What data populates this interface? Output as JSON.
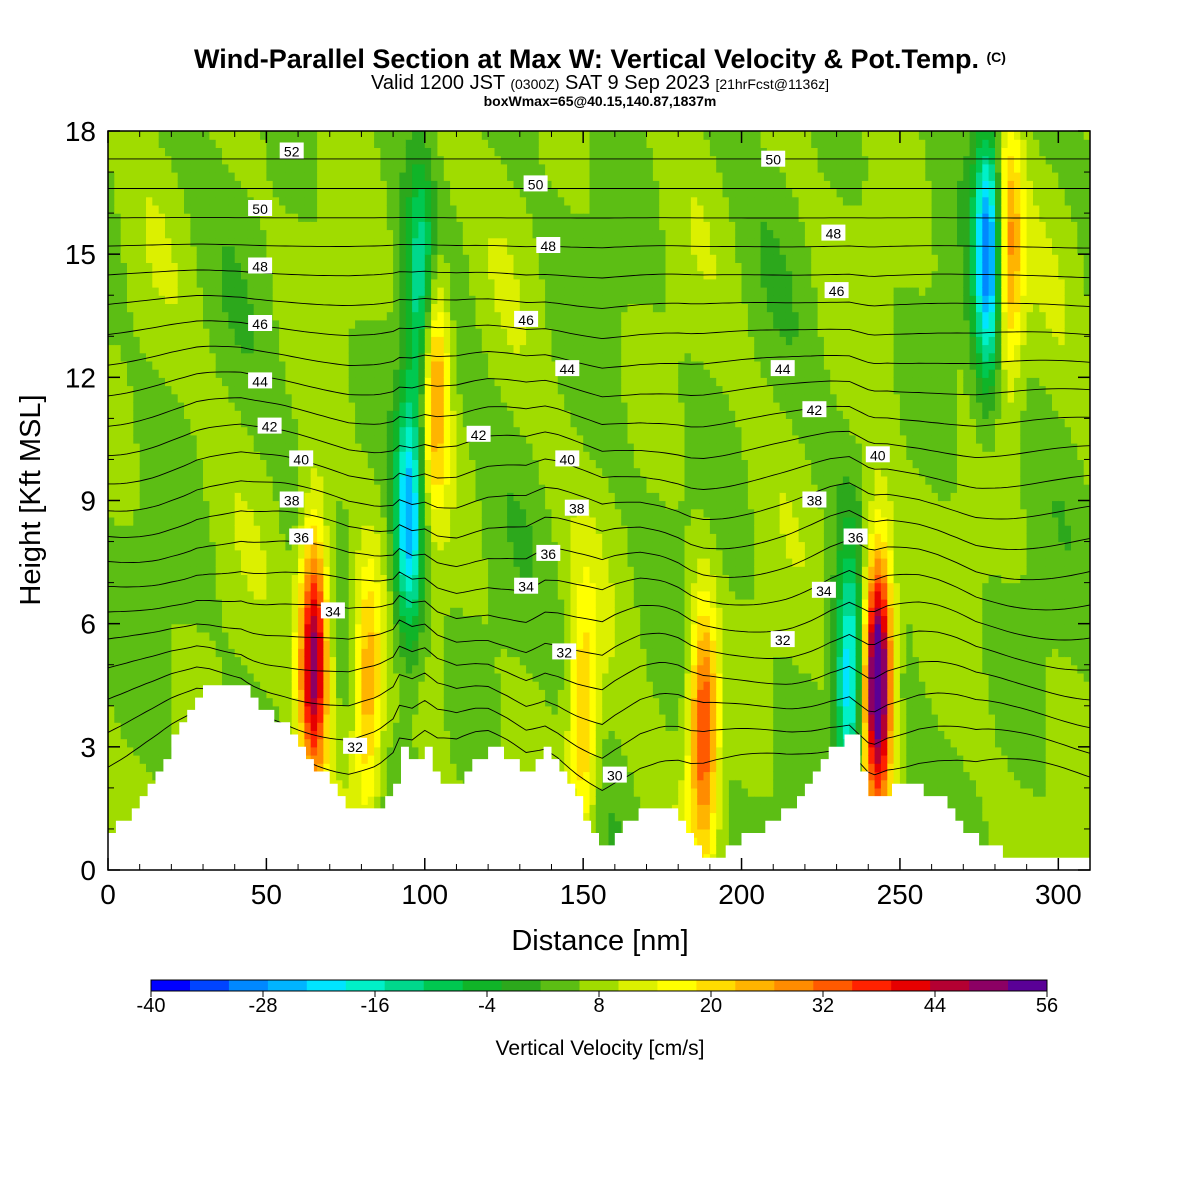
{
  "header": {
    "title": "Wind-Parallel Section at Max W: Vertical Velocity & Pot.Temp.",
    "copyright_mark": "(C)",
    "valid_prefix": "Valid 1200 JST",
    "valid_utc": "(0300Z)",
    "valid_date": "SAT 9 Sep 2023",
    "forecast_tag": "[21hrFcst@1136z]",
    "box_info": "boxWmax=65@40.15,140.87,1837m"
  },
  "chart_data": {
    "type": "heatmap",
    "xlabel": "Distance [nm]",
    "ylabel": "Height [Kft MSL]",
    "xlim": [
      0,
      310
    ],
    "ylim": [
      0,
      18
    ],
    "x_ticks": [
      0,
      50,
      100,
      150,
      200,
      250,
      300
    ],
    "y_ticks": [
      0,
      3,
      6,
      9,
      12,
      15,
      18
    ],
    "colorbar": {
      "label": "Vertical Velocity [cm/s]",
      "range": [
        -40,
        56
      ],
      "step": 4,
      "tick_labels": [
        "-40",
        "-28",
        "-16",
        "-4",
        "8",
        "20",
        "32",
        "44",
        "56"
      ],
      "colors": [
        "#0000ff",
        "#0044ff",
        "#0088ff",
        "#00b4ff",
        "#00e4ff",
        "#00f0c8",
        "#00d88c",
        "#00c850",
        "#10b428",
        "#2ca81c",
        "#5cbe14",
        "#a0dc00",
        "#dcf000",
        "#ffff00",
        "#ffdc00",
        "#ffb400",
        "#ff8c00",
        "#ff5a00",
        "#ff2200",
        "#e60000",
        "#b40032",
        "#8c0064",
        "#5a0096"
      ]
    },
    "terrain_profile": [
      [
        0,
        1.0
      ],
      [
        5,
        1.3
      ],
      [
        10,
        1.8
      ],
      [
        15,
        2.4
      ],
      [
        20,
        3.2
      ],
      [
        25,
        3.9
      ],
      [
        28,
        4.4
      ],
      [
        32,
        4.6
      ],
      [
        42,
        4.6
      ],
      [
        45,
        4.2
      ],
      [
        50,
        3.8
      ],
      [
        55,
        3.5
      ],
      [
        60,
        3.0
      ],
      [
        66,
        2.4
      ],
      [
        72,
        1.8
      ],
      [
        76,
        1.4
      ],
      [
        85,
        1.4
      ],
      [
        90,
        2.0
      ],
      [
        92,
        3.0
      ],
      [
        96,
        2.5
      ],
      [
        100,
        3.0
      ],
      [
        104,
        2.2
      ],
      [
        110,
        2.0
      ],
      [
        116,
        2.7
      ],
      [
        120,
        3.0
      ],
      [
        126,
        2.7
      ],
      [
        132,
        2.2
      ],
      [
        138,
        3.0
      ],
      [
        142,
        2.6
      ],
      [
        148,
        1.6
      ],
      [
        152,
        1.0
      ],
      [
        156,
        0.4
      ],
      [
        160,
        0.9
      ],
      [
        168,
        1.6
      ],
      [
        175,
        1.6
      ],
      [
        180,
        1.2
      ],
      [
        184,
        0.6
      ],
      [
        188,
        0.35
      ],
      [
        195,
        0.5
      ],
      [
        205,
        1.0
      ],
      [
        215,
        1.6
      ],
      [
        222,
        2.3
      ],
      [
        228,
        3.0
      ],
      [
        234,
        3.4
      ],
      [
        238,
        2.4
      ],
      [
        241,
        1.6
      ],
      [
        246,
        2.0
      ],
      [
        256,
        2.0
      ],
      [
        262,
        1.7
      ],
      [
        268,
        1.2
      ],
      [
        274,
        0.6
      ],
      [
        285,
        0.4
      ],
      [
        300,
        0.4
      ],
      [
        310,
        0.4
      ]
    ],
    "vertical_velocity_features": [
      {
        "x": 65,
        "z": 5.3,
        "w": 44
      },
      {
        "x": 82,
        "z": 4.5,
        "w": 20
      },
      {
        "x": 95,
        "z": 8.5,
        "w": -32
      },
      {
        "x": 99,
        "z": 14,
        "w": -20
      },
      {
        "x": 103,
        "z": 12,
        "w": 24
      },
      {
        "x": 150,
        "z": 3.5,
        "w": 18
      },
      {
        "x": 188,
        "z": 3.5,
        "w": 30
      },
      {
        "x": 234,
        "z": 4.5,
        "w": -28
      },
      {
        "x": 243,
        "z": 4.8,
        "w": 56
      },
      {
        "x": 278,
        "z": 15,
        "w": -36
      },
      {
        "x": 284,
        "z": 15,
        "w": 24
      }
    ],
    "theta_contour_labels": [
      {
        "text": "52",
        "x": 58,
        "z": 17.5
      },
      {
        "text": "50",
        "x": 48,
        "z": 16.1
      },
      {
        "text": "48",
        "x": 48,
        "z": 14.7
      },
      {
        "text": "46",
        "x": 48,
        "z": 13.3
      },
      {
        "text": "44",
        "x": 48,
        "z": 11.9
      },
      {
        "text": "42",
        "x": 51,
        "z": 10.8
      },
      {
        "text": "40",
        "x": 61,
        "z": 10.0
      },
      {
        "text": "38",
        "x": 58,
        "z": 9.0
      },
      {
        "text": "36",
        "x": 61,
        "z": 8.1
      },
      {
        "text": "34",
        "x": 71,
        "z": 6.3
      },
      {
        "text": "32",
        "x": 78,
        "z": 3.0
      },
      {
        "text": "50",
        "x": 135,
        "z": 16.7
      },
      {
        "text": "48",
        "x": 139,
        "z": 15.2
      },
      {
        "text": "46",
        "x": 132,
        "z": 13.4
      },
      {
        "text": "44",
        "x": 145,
        "z": 12.2
      },
      {
        "text": "42",
        "x": 117,
        "z": 10.6
      },
      {
        "text": "40",
        "x": 145,
        "z": 10.0
      },
      {
        "text": "38",
        "x": 148,
        "z": 8.8
      },
      {
        "text": "36",
        "x": 139,
        "z": 7.7
      },
      {
        "text": "34",
        "x": 132,
        "z": 6.9
      },
      {
        "text": "32",
        "x": 144,
        "z": 5.3
      },
      {
        "text": "30",
        "x": 160,
        "z": 2.3
      },
      {
        "text": "50",
        "x": 210,
        "z": 17.3
      },
      {
        "text": "48",
        "x": 229,
        "z": 15.5
      },
      {
        "text": "46",
        "x": 230,
        "z": 14.1
      },
      {
        "text": "44",
        "x": 213,
        "z": 12.2
      },
      {
        "text": "42",
        "x": 223,
        "z": 11.2
      },
      {
        "text": "40",
        "x": 243,
        "z": 10.1
      },
      {
        "text": "38",
        "x": 223,
        "z": 9.0
      },
      {
        "text": "36",
        "x": 236,
        "z": 8.1
      },
      {
        "text": "34",
        "x": 226,
        "z": 6.8
      },
      {
        "text": "32",
        "x": 213,
        "z": 5.6
      }
    ]
  }
}
